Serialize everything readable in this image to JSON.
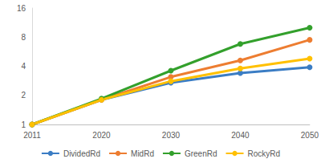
{
  "chart_data": {
    "type": "line",
    "log": "y",
    "grid": false,
    "legend": "bottom",
    "marker": "circle",
    "categories": [
      "2011",
      "2020",
      "2030",
      "2040",
      "2050"
    ],
    "ylim": [
      1,
      16
    ],
    "yticks": [
      1,
      2,
      4,
      8,
      16
    ],
    "series": [
      {
        "name": "DividedRd",
        "color": "#3b7dc4",
        "values": [
          1,
          1.8,
          2.7,
          3.4,
          3.9
        ]
      },
      {
        "name": "MidRd",
        "color": "#ed7d31",
        "values": [
          1,
          1.8,
          3.1,
          4.6,
          7.5
        ]
      },
      {
        "name": "GreenRd",
        "color": "#33a02c",
        "values": [
          1,
          1.85,
          3.6,
          6.8,
          10
        ]
      },
      {
        "name": "RockyRd",
        "color": "#ffc000",
        "values": [
          1,
          1.8,
          2.8,
          3.8,
          4.8
        ]
      }
    ]
  }
}
